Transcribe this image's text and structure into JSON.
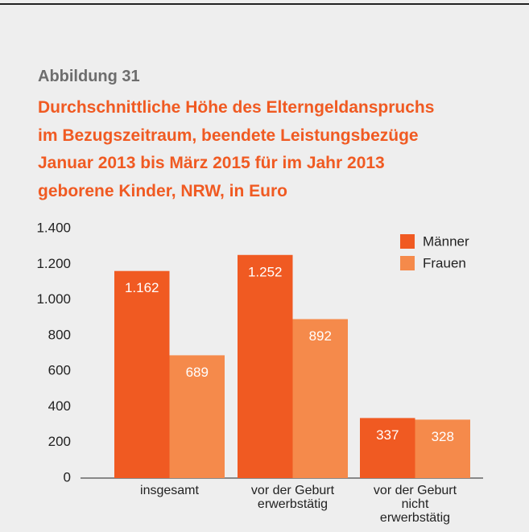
{
  "chart_data": {
    "type": "bar",
    "subtitle": "Abbildung 31",
    "title": "Durchschnittliche Höhe des Elterngeldanspruchs\nim Bezugszeitraum, beendete Leistungsbezüge\nJanuar 2013 bis März 2015 für im Jahr 2013\ngeborene Kinder, NRW, in Euro",
    "categories": [
      "insgesamt",
      "vor der Geburt\nerwerbstätig",
      "vor der Geburt\nnicht\nerwerbstätig"
    ],
    "series": [
      {
        "name": "Männer",
        "color": "#f05a22",
        "values": [
          1162,
          1252,
          337
        ],
        "value_labels": [
          "1.162",
          "1.252",
          "337"
        ]
      },
      {
        "name": "Frauen",
        "color": "#f58a4b",
        "values": [
          689,
          892,
          328
        ],
        "value_labels": [
          "689",
          "892",
          "328"
        ]
      }
    ],
    "ylim": [
      0,
      1400
    ],
    "yticks": [
      0,
      200,
      400,
      600,
      800,
      {
        "value": 1000,
        "label": "1.000"
      },
      {
        "value": 1200,
        "label": "1.200"
      },
      {
        "value": 1400,
        "label": "1.400"
      }
    ],
    "legend": "top-right",
    "grid": false
  }
}
